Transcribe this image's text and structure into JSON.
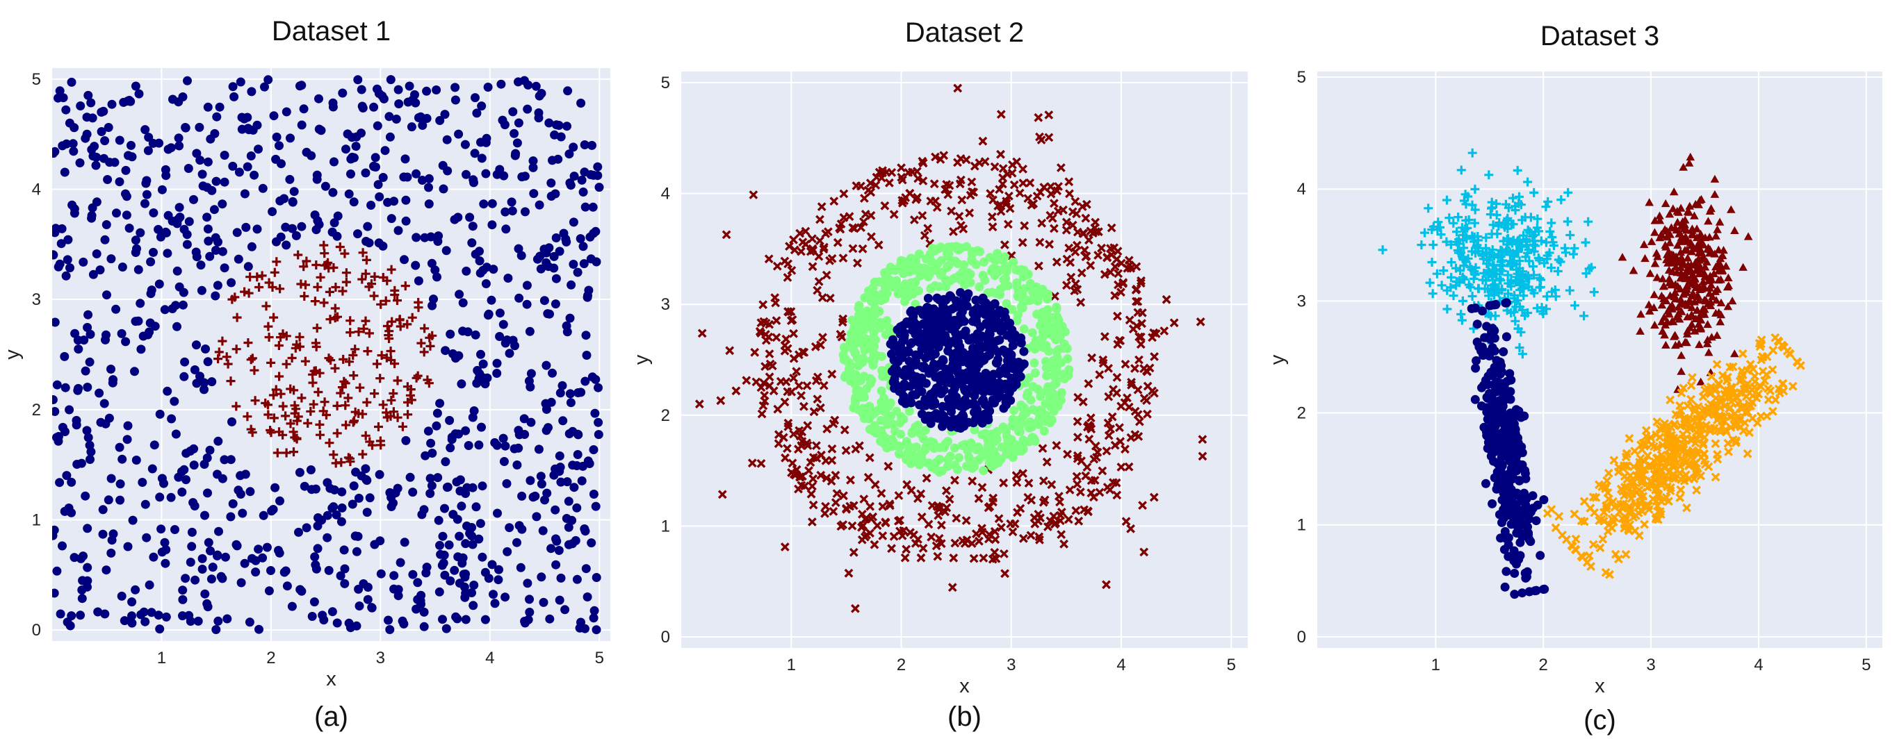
{
  "chart_data": [
    {
      "type": "scatter",
      "title": "Dataset 1",
      "caption": "(a)",
      "xlabel": "x",
      "ylabel": "y",
      "xlim": [
        0,
        5.1
      ],
      "ylim": [
        -0.1,
        5.1
      ],
      "xticks": [
        "1",
        "2",
        "3",
        "4",
        "5"
      ],
      "yticks": [
        "0",
        "1",
        "2",
        "3",
        "4",
        "5"
      ],
      "grid": true,
      "background_color": "#e5eaf4",
      "series": [
        {
          "marker": "circle",
          "color": "#00007f",
          "generator": "uniform-square-outside-disc",
          "count": 1050,
          "xrange": [
            0,
            5
          ],
          "yrange": [
            0,
            5
          ],
          "exclude_center": [
            2.5,
            2.5
          ],
          "exclude_radius": 1.05
        },
        {
          "marker": "plus",
          "color": "#7f0000",
          "generator": "uniform-disc",
          "count": 230,
          "center": [
            2.5,
            2.5
          ],
          "radius": 1.0
        }
      ]
    },
    {
      "type": "scatter",
      "title": "Dataset  2",
      "caption": "(b)",
      "xlabel": "x",
      "ylabel": "y",
      "xlim": [
        0,
        5.15
      ],
      "ylim": [
        -0.1,
        5.1
      ],
      "xticks": [
        "1",
        "2",
        "3",
        "4",
        "5"
      ],
      "yticks": [
        "0",
        "1",
        "2",
        "3",
        "4",
        "5"
      ],
      "grid": true,
      "background_color": "#e5eaf4",
      "series": [
        {
          "marker": "x",
          "color": "#7f0000",
          "generator": "ring",
          "count": 620,
          "center": [
            2.5,
            2.5
          ],
          "rmin": 1.0,
          "rmax": 1.85,
          "outliers": 45,
          "outlier_rmax": 2.45
        },
        {
          "marker": "circle",
          "color": "#7fff7f",
          "generator": "ring",
          "count": 650,
          "center": [
            2.5,
            2.5
          ],
          "rmin": 0.58,
          "rmax": 1.03
        },
        {
          "marker": "circle",
          "color": "#00007f",
          "generator": "uniform-disc",
          "count": 560,
          "center": [
            2.5,
            2.5
          ],
          "radius": 0.62
        }
      ]
    },
    {
      "type": "scatter",
      "title": "Dataset  3",
      "caption": "(c)",
      "xlabel": "x",
      "ylabel": "y",
      "xlim": [
        -0.1,
        5.15
      ],
      "ylim": [
        -0.1,
        5.05
      ],
      "xticks": [
        "1",
        "2",
        "3",
        "4",
        "5"
      ],
      "yticks": [
        "0",
        "1",
        "2",
        "3",
        "4",
        "5"
      ],
      "grid": true,
      "background_color": "#e5eaf4",
      "series": [
        {
          "marker": "plus",
          "color": "#00bfe6",
          "generator": "gaussian",
          "count": 360,
          "center": [
            1.6,
            3.35
          ],
          "sd": [
            0.33,
            0.3
          ]
        },
        {
          "marker": "circle",
          "color": "#00007f",
          "generator": "gaussian-line",
          "count": 360,
          "start": [
            1.45,
            2.9
          ],
          "end": [
            1.85,
            0.45
          ],
          "spread": 0.09
        },
        {
          "marker": "triangle",
          "color": "#7f0000",
          "generator": "gaussian",
          "count": 340,
          "center": [
            3.35,
            3.25
          ],
          "sd": [
            0.18,
            0.35
          ]
        },
        {
          "marker": "x",
          "color": "#ffa500",
          "generator": "gaussian-line",
          "count": 520,
          "start": [
            2.35,
            0.8
          ],
          "end": [
            4.2,
            2.55
          ],
          "spread": 0.17
        }
      ]
    }
  ]
}
